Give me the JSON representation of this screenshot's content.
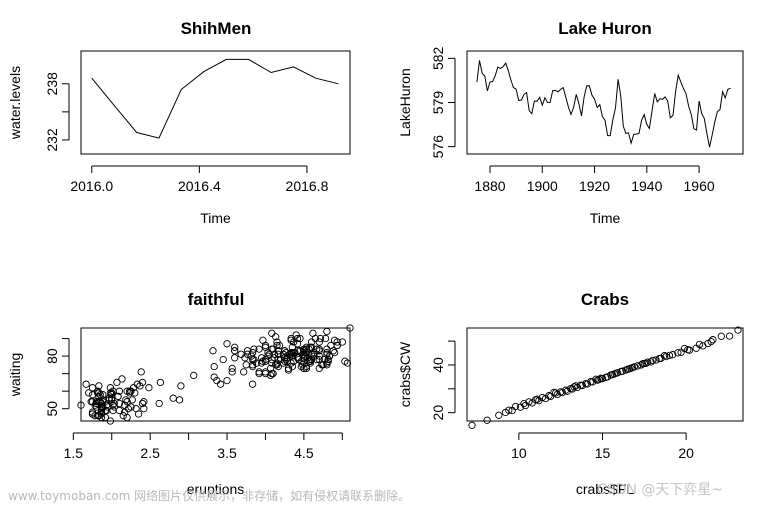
{
  "chart_data": [
    {
      "type": "line",
      "title": "ShihMen",
      "xlabel": "Time",
      "ylabel": "water.levels",
      "xlim": [
        1975.96,
        1976.96
      ],
      "ylim": [
        230.5,
        241.5
      ],
      "xticks": [
        1976.0,
        1976.4,
        1976.8
      ],
      "xtick_labels": [
        "2016.0",
        "2016.4",
        "2016.8"
      ],
      "yticks": [
        232,
        235,
        238
      ],
      "ytick_labels": [
        "232",
        "",
        "238"
      ],
      "x": [
        1976.0,
        1976.083,
        1976.167,
        1976.25,
        1976.333,
        1976.417,
        1976.5,
        1976.583,
        1976.667,
        1976.75,
        1976.833,
        1976.917
      ],
      "values": [
        238.6,
        235.7,
        232.8,
        232.2,
        237.4,
        239.3,
        240.6,
        240.6,
        239.2,
        239.8,
        238.6,
        238.0
      ]
    },
    {
      "type": "line",
      "title": "Lake Huron",
      "xlabel": "Time",
      "ylabel": "LakeHuron",
      "xlim": [
        1871.2,
        1976.8
      ],
      "ylim": [
        575.5,
        582.5
      ],
      "xticks": [
        1880,
        1900,
        1920,
        1940,
        1960
      ],
      "xtick_labels": [
        "1880",
        "1900",
        "1920",
        "1940",
        "1960"
      ],
      "yticks": [
        576,
        579,
        582
      ],
      "ytick_labels": [
        "576",
        "579",
        "582"
      ],
      "x": [
        1875,
        1876,
        1877,
        1878,
        1879,
        1880,
        1881,
        1882,
        1883,
        1884,
        1885,
        1886,
        1887,
        1888,
        1889,
        1890,
        1891,
        1892,
        1893,
        1894,
        1895,
        1896,
        1897,
        1898,
        1899,
        1900,
        1901,
        1902,
        1903,
        1904,
        1905,
        1906,
        1907,
        1908,
        1909,
        1910,
        1911,
        1912,
        1913,
        1914,
        1915,
        1916,
        1917,
        1918,
        1919,
        1920,
        1921,
        1922,
        1923,
        1924,
        1925,
        1926,
        1927,
        1928,
        1929,
        1930,
        1931,
        1932,
        1933,
        1934,
        1935,
        1936,
        1937,
        1938,
        1939,
        1940,
        1941,
        1942,
        1943,
        1944,
        1945,
        1946,
        1947,
        1948,
        1949,
        1950,
        1951,
        1952,
        1953,
        1954,
        1955,
        1956,
        1957,
        1958,
        1959,
        1960,
        1961,
        1962,
        1963,
        1964,
        1965,
        1966,
        1967,
        1968,
        1969,
        1970,
        1971,
        1972
      ],
      "values": [
        580.38,
        581.86,
        580.97,
        580.8,
        579.79,
        580.39,
        580.42,
        580.82,
        581.4,
        581.32,
        581.44,
        581.68,
        581.17,
        580.53,
        580.01,
        579.91,
        579.14,
        579.16,
        579.55,
        579.67,
        578.44,
        578.24,
        579.1,
        579.09,
        579.35,
        578.82,
        579.32,
        579.01,
        579.0,
        579.8,
        579.83,
        579.72,
        579.89,
        580.01,
        579.37,
        578.69,
        578.19,
        578.67,
        579.55,
        578.92,
        578.09,
        579.37,
        580.13,
        580.14,
        579.51,
        579.24,
        578.66,
        578.86,
        578.05,
        577.79,
        576.75,
        576.75,
        577.82,
        578.64,
        580.58,
        579.48,
        577.38,
        576.9,
        576.94,
        576.24,
        576.84,
        576.85,
        576.9,
        577.79,
        578.18,
        577.51,
        577.23,
        578.42,
        579.61,
        579.05,
        579.26,
        579.22,
        579.38,
        579.1,
        577.95,
        578.12,
        579.75,
        580.85,
        580.41,
        579.96,
        579.61,
        578.76,
        578.18,
        577.21,
        577.13,
        579.1,
        578.25,
        577.91,
        576.89,
        575.96,
        576.8,
        577.68,
        578.38,
        578.52,
        579.74,
        579.31,
        579.89,
        579.96
      ]
    },
    {
      "type": "scatter",
      "title": "faithful",
      "xlabel": "eruptions",
      "ylabel": "waiting",
      "xlim": [
        1.6,
        5.1
      ],
      "ylim": [
        43,
        96
      ],
      "xticks": [
        1.5,
        2.0,
        2.5,
        3.0,
        3.5,
        4.0,
        4.5,
        5.0
      ],
      "xtick_labels": [
        "1.5",
        "",
        "2.5",
        "",
        "3.5",
        "",
        "4.5",
        ""
      ],
      "yticks": [
        50,
        60,
        70,
        80,
        90
      ],
      "ytick_labels": [
        "50",
        "",
        "",
        "80",
        ""
      ],
      "x": [
        3.6,
        1.8,
        3.333,
        2.283,
        4.533,
        2.883,
        4.7,
        3.6,
        1.95,
        4.35,
        1.833,
        3.917,
        4.2,
        1.75,
        4.7,
        2.167,
        1.75,
        4.8,
        1.6,
        4.25,
        1.8,
        1.75,
        3.45,
        3.067,
        4.533,
        3.6,
        1.967,
        4.083,
        3.85,
        4.433,
        4.3,
        4.467,
        3.367,
        4.033,
        3.833,
        2.017,
        1.867,
        4.833,
        1.833,
        4.783,
        4.35,
        1.883,
        4.567,
        1.75,
        4.533,
        3.317,
        3.833,
        2.1,
        4.633,
        2.0,
        4.8,
        4.716,
        1.833,
        4.833,
        1.733,
        4.883,
        3.717,
        1.667,
        4.567,
        4.317,
        2.233,
        4.5,
        1.75,
        4.8,
        1.817,
        4.4,
        4.167,
        4.7,
        2.067,
        4.7,
        4.033,
        1.967,
        4.5,
        4.0,
        1.983,
        5.067,
        2.017,
        4.567,
        3.883,
        3.6,
        4.133,
        4.333,
        4.1,
        2.633,
        4.067,
        4.933,
        3.95,
        4.517,
        2.167,
        4.0,
        2.2,
        4.333,
        1.867,
        4.817,
        1.833,
        4.3,
        4.667,
        3.75,
        1.867,
        4.9,
        2.483,
        4.367,
        2.1,
        4.5,
        4.05,
        1.867,
        4.7,
        1.783,
        4.85,
        3.683,
        4.733,
        2.3,
        4.9,
        4.417,
        1.7,
        4.633,
        2.317,
        4.6,
        1.817,
        4.417,
        2.617,
        4.067,
        4.25,
        1.967,
        4.6,
        3.767,
        1.917,
        4.5,
        2.267,
        4.65,
        1.867,
        4.167,
        2.8,
        4.333,
        1.833,
        4.383,
        1.883,
        4.933,
        2.033,
        3.733,
        4.233,
        2.233,
        4.533,
        4.817,
        4.333,
        1.983,
        4.633,
        2.017,
        5.1,
        1.8,
        5.033,
        4.0,
        2.4,
        4.6,
        3.567,
        4.0,
        4.5,
        4.083,
        1.8,
        3.967,
        2.2,
        4.15,
        2.0,
        3.833,
        3.5,
        4.583,
        2.367,
        5.0,
        1.933,
        4.617,
        1.917,
        2.083,
        4.583,
        3.333,
        4.167,
        4.333,
        4.5,
        2.417,
        4.0,
        4.167,
        1.883,
        4.583,
        4.25,
        3.767,
        2.033,
        4.433,
        4.083,
        1.833,
        4.417,
        2.183,
        4.8,
        1.833,
        4.8,
        4.1,
        3.966,
        4.233,
        3.5,
        4.366,
        2.25,
        4.667,
        2.1,
        4.35,
        4.133,
        1.867,
        4.6,
        1.783,
        4.367,
        3.85,
        1.933,
        4.5,
        2.383,
        4.7,
        1.867,
        3.833,
        3.417,
        4.233,
        2.4,
        4.8,
        2.0,
        4.15,
        1.867,
        4.267,
        1.75,
        4.483,
        4.0,
        4.117,
        4.083,
        4.267,
        3.917,
        4.55,
        4.083,
        2.417,
        4.183,
        2.217,
        4.45,
        1.883,
        1.85,
        4.283,
        3.95,
        2.333,
        4.15,
        2.35,
        4.933,
        2.9,
        4.583,
        3.833,
        2.083,
        4.367,
        2.133,
        4.35,
        2.2,
        4.45,
        3.567,
        4.5,
        4.15,
        3.817,
        3.917,
        4.45,
        2.0,
        4.283,
        4.767,
        4.533,
        1.85,
        4.25,
        1.983,
        2.25,
        4.75,
        4.117,
        2.15,
        4.417,
        1.817,
        4.467
      ],
      "y": [
        79,
        54,
        74,
        62,
        85,
        55,
        88,
        85,
        51,
        85,
        54,
        84,
        78,
        47,
        83,
        52,
        62,
        84,
        52,
        79,
        51,
        47,
        78,
        69,
        74,
        83,
        55,
        76,
        78,
        79,
        73,
        77,
        66,
        80,
        74,
        52,
        48,
        80,
        59,
        90,
        80,
        58,
        84,
        58,
        73,
        83,
        64,
        53,
        82,
        59,
        75,
        90,
        54,
        80,
        54,
        83,
        71,
        64,
        77,
        81,
        59,
        84,
        48,
        82,
        60,
        92,
        78,
        78,
        65,
        73,
        82,
        56,
        79,
        71,
        62,
        76,
        60,
        78,
        76,
        83,
        75,
        82,
        70,
        65,
        73,
        88,
        76,
        80,
        48,
        86,
        60,
        90,
        50,
        78,
        63,
        72,
        84,
        75,
        51,
        82,
        62,
        88,
        49,
        83,
        81,
        47,
        84,
        52,
        86,
        81,
        75,
        59,
        89,
        79,
        59,
        81,
        50,
        85,
        59,
        87,
        53,
        69,
        77,
        56,
        88,
        81,
        45,
        82,
        55,
        90,
        45,
        83,
        56,
        89,
        46,
        82,
        51,
        86,
        53,
        79,
        81,
        60,
        82,
        77,
        76,
        59,
        80,
        49,
        96,
        53,
        77,
        77,
        65,
        81,
        71,
        70,
        81,
        93,
        53,
        89,
        45,
        86,
        58,
        78,
        66,
        76,
        63,
        88,
        52,
        93,
        49,
        57,
        77,
        68,
        81,
        81,
        73,
        50,
        85,
        74,
        55,
        77,
        83,
        83,
        51,
        78,
        84,
        46,
        83,
        55,
        81,
        57,
        76,
        84,
        77,
        81,
        87,
        77,
        51,
        78,
        60,
        82,
        91,
        53,
        78,
        46,
        77,
        84,
        49,
        83,
        71,
        80,
        49,
        75,
        64,
        76,
        53,
        94,
        55,
        76,
        50,
        82,
        54,
        75,
        78,
        79,
        78,
        78,
        70,
        79,
        70,
        54,
        86,
        50,
        90,
        54,
        54,
        77,
        79,
        64,
        75,
        47,
        86,
        63,
        85,
        82,
        57,
        82,
        67,
        74,
        54,
        83,
        73,
        73,
        88,
        80,
        71,
        83,
        56,
        79,
        78,
        84,
        58,
        83,
        43,
        60,
        75,
        81,
        46,
        90,
        46,
        74
      ]
    },
    {
      "type": "scatter",
      "title": "Crabs",
      "xlabel": "crabs$FL",
      "ylabel": "crabs$CW",
      "xlim": [
        6.9,
        23.4
      ],
      "ylim": [
        16.5,
        55.5
      ],
      "xticks": [
        10,
        15,
        20
      ],
      "xtick_labels": [
        "10",
        "15",
        "20"
      ],
      "yticks": [
        20,
        30,
        40,
        50
      ],
      "ytick_labels": [
        "20",
        "",
        "40",
        ""
      ],
      "x": [
        7.2,
        8.1,
        8.8,
        9.2,
        9.6,
        10.1,
        10.4,
        10.8,
        11.2,
        11.6,
        11.9,
        12.3,
        12.6,
        12.9,
        13.2,
        13.5,
        13.8,
        14.1,
        14.4,
        14.7,
        15.0,
        15.3,
        15.6,
        15.9,
        16.2,
        16.5,
        16.8,
        17.1,
        17.4,
        17.7,
        18.0,
        18.4,
        18.8,
        19.2,
        19.7,
        20.2,
        20.6,
        21.0,
        21.3,
        21.6,
        22.1,
        22.6,
        23.1,
        9.4,
        10.3,
        11.0,
        11.8,
        12.5,
        13.1,
        13.7,
        14.3,
        14.9,
        15.5,
        16.1,
        16.7,
        17.3,
        17.9,
        18.5,
        19.0,
        19.5,
        20.1,
        12.1,
        13.4,
        14.6,
        15.8,
        16.9,
        17.6,
        18.2,
        16.4,
        15.2,
        14.0,
        12.8,
        11.4,
        10.6,
        9.8,
        18.7,
        19.9,
        20.8,
        21.5,
        14.8,
        15.7,
        16.6,
        17.5,
        13.3,
        12.2,
        11.1
      ],
      "y": [
        14.7,
        16.8,
        18.9,
        20.1,
        20.9,
        22.3,
        23.0,
        24.1,
        25.0,
        25.9,
        26.8,
        27.6,
        28.4,
        29.0,
        29.9,
        30.6,
        31.4,
        32.0,
        32.9,
        33.6,
        34.3,
        35.0,
        35.9,
        36.7,
        37.4,
        38.2,
        38.9,
        39.6,
        40.5,
        41.2,
        41.9,
        42.7,
        43.5,
        44.3,
        45.3,
        46.2,
        47.0,
        48.0,
        49.0,
        50.6,
        52.0,
        52.1,
        54.6,
        21.0,
        23.8,
        25.4,
        27.1,
        28.7,
        30.1,
        31.5,
        33.0,
        34.4,
        35.8,
        37.2,
        38.6,
        40.0,
        41.3,
        42.8,
        44.0,
        45.1,
        46.4,
        28.5,
        31.2,
        34.0,
        36.5,
        39.2,
        40.7,
        42.1,
        37.9,
        34.8,
        32.2,
        29.4,
        26.3,
        24.5,
        22.6,
        43.9,
        46.9,
        48.6,
        49.8,
        33.9,
        36.2,
        38.4,
        40.6,
        30.8,
        28.3,
        25.6
      ]
    }
  ],
  "watermark": {
    "left": "www.toymoban.com 网络图片仅供展示，非存储，如有侵权请联系删除。",
    "right": "CSDN @天下弈星~"
  }
}
